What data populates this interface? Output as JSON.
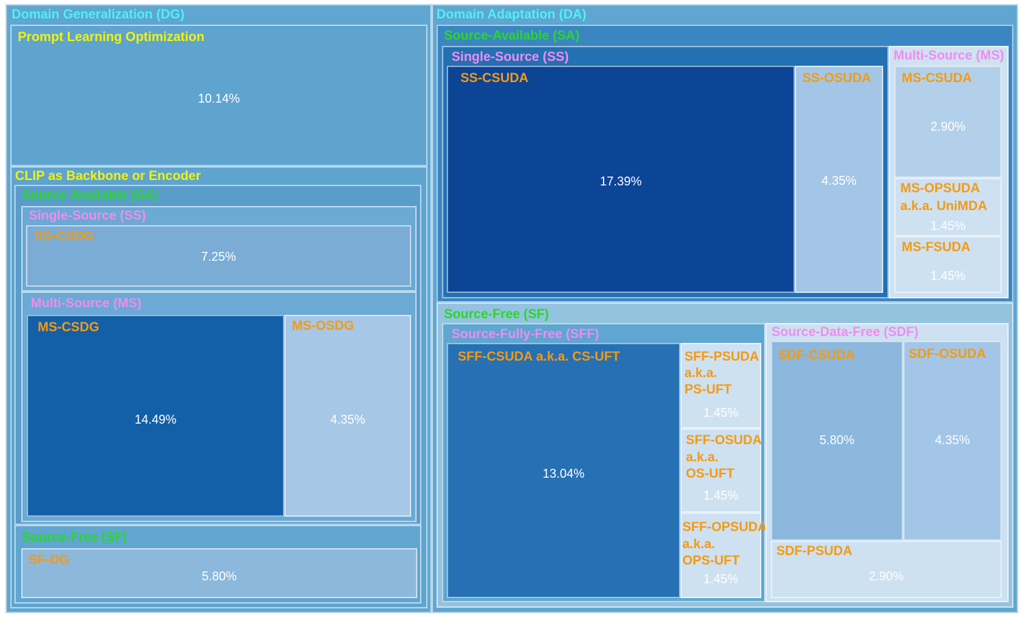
{
  "chart_data": {
    "type": "treemap",
    "colors": {
      "category_label": "#4ff0f8",
      "method_label": "#f2f20a",
      "source_setting_label": "#2ad72a",
      "domain_count_label": "#f08cf0",
      "leaf_label": "#f59a12",
      "value_text": "#ffffff"
    },
    "dg": {
      "label": "Domain Generalization (DG)",
      "prompt": {
        "label": "Prompt Learning Optimization",
        "value": "10.14%"
      },
      "clip": {
        "label": "CLIP as Backbone or Encoder",
        "sa": {
          "label": "Source-Available (SA)",
          "ss": {
            "label": "Single-Source (SS)",
            "sscsdg": {
              "label": "SS-CSDG",
              "value": "7.25%"
            }
          },
          "ms": {
            "label": "Multi-Source (MS)",
            "mscsdg": {
              "label": "MS-CSDG",
              "value": "14.49%"
            },
            "msosdg": {
              "label": "MS-OSDG",
              "value": "4.35%"
            }
          }
        },
        "sf": {
          "label": "Source-Free (SF)",
          "sfdg": {
            "label": "SF-DG",
            "value": "5.80%"
          }
        }
      }
    },
    "da": {
      "label": "Domain Adaptation (DA)",
      "sa": {
        "label": "Source-Available (SA)",
        "ss": {
          "label": "Single-Source (SS)",
          "sscsuda": {
            "label": "SS-CSUDA",
            "value": "17.39%"
          },
          "ssosuda": {
            "label": "SS-OSUDA",
            "value": "4.35%"
          }
        },
        "ms": {
          "label": "Multi-Source (MS)",
          "mscsuda": {
            "label": "MS-CSUDA",
            "value": "2.90%"
          },
          "msopsuda": {
            "label1": "MS-OPSUDA",
            "label2": "a.k.a. UniMDA",
            "value": "1.45%"
          },
          "msfsuda": {
            "label": "MS-FSUDA",
            "value": "1.45%"
          }
        }
      },
      "sf": {
        "label": "Source-Free (SF)",
        "sff": {
          "label": "Source-Fully-Free (SFF)",
          "csuda": {
            "label": "SFF-CSUDA a.k.a. CS-UFT",
            "value": "13.04%"
          },
          "psuda": {
            "label1": "SFF-PSUDA",
            "label2": "a.k.a.",
            "label3": "PS-UFT",
            "value": "1.45%"
          },
          "osuda": {
            "label1": "SFF-OSUDA",
            "label2": "a.k.a.",
            "label3": "OS-UFT",
            "value": "1.45%"
          },
          "opsuda": {
            "label1": "SFF-OPSUDA",
            "label2": "a.k.a.",
            "label3": "OPS-UFT",
            "value": "1.45%"
          }
        },
        "sdf": {
          "label": "Source-Data-Free (SDF)",
          "csuda": {
            "label": "SDF-CSUDA",
            "value": "5.80%"
          },
          "osuda": {
            "label": "SDF-OSUDA",
            "value": "4.35%"
          },
          "psuda": {
            "label": "SDF-PSUDA",
            "value": "2.90%"
          }
        }
      }
    }
  }
}
